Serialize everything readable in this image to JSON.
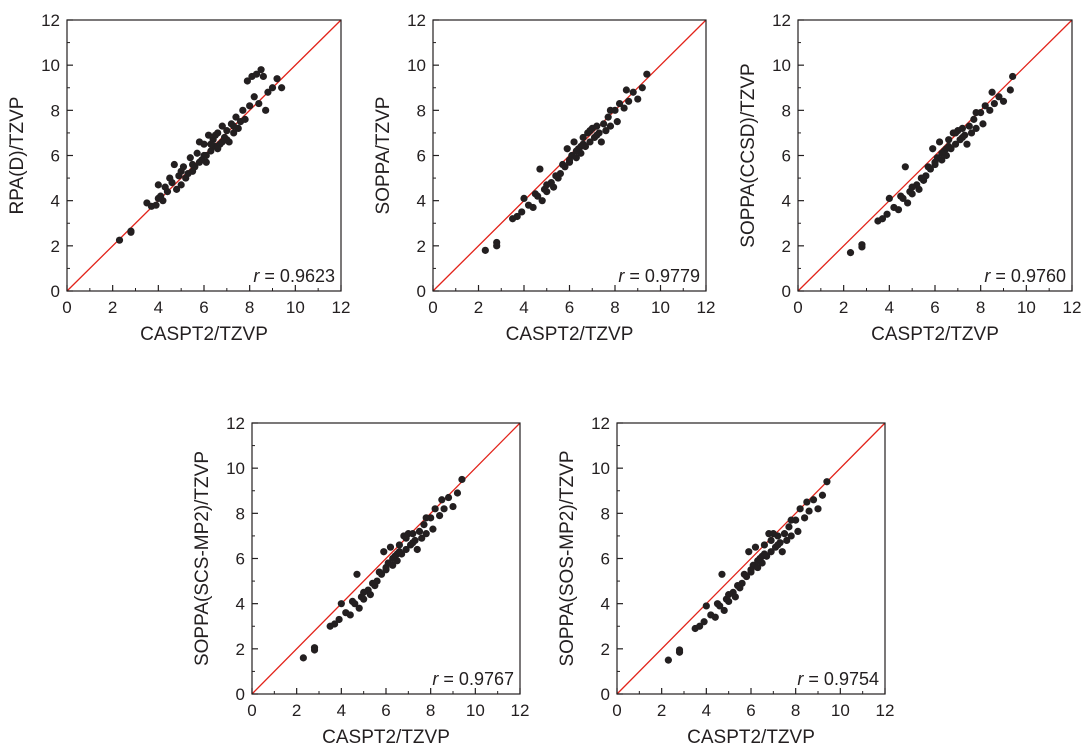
{
  "chart_data": [
    {
      "type": "scatter",
      "xlabel": "CASPT2/TZVP",
      "ylabel": "RPA(D)/TZVP",
      "xlim": [
        0,
        12
      ],
      "ylim": [
        0,
        12
      ],
      "xticks": [
        "0",
        "2",
        "4",
        "6",
        "8",
        "10",
        "12"
      ],
      "yticks": [
        "0",
        "2",
        "4",
        "6",
        "8",
        "10",
        "12"
      ],
      "diagonal_line_color": "#e2231a",
      "point_color": "#231f20",
      "r_var": "r",
      "r_value": "= 0.9623",
      "points": [
        [
          2.3,
          2.25
        ],
        [
          2.8,
          2.6
        ],
        [
          2.8,
          2.65
        ],
        [
          3.5,
          3.9
        ],
        [
          3.7,
          3.75
        ],
        [
          3.9,
          3.8
        ],
        [
          4.0,
          4.7
        ],
        [
          4.1,
          4.2
        ],
        [
          4.2,
          4.0
        ],
        [
          4.3,
          4.6
        ],
        [
          4.4,
          4.4
        ],
        [
          4.5,
          5.0
        ],
        [
          4.6,
          4.8
        ],
        [
          4.7,
          5.6
        ],
        [
          4.8,
          4.5
        ],
        [
          4.9,
          5.1
        ],
        [
          5.0,
          4.7
        ],
        [
          5.1,
          5.5
        ],
        [
          5.2,
          5.0
        ],
        [
          5.3,
          5.2
        ],
        [
          5.4,
          5.9
        ],
        [
          5.5,
          5.3
        ],
        [
          5.6,
          5.5
        ],
        [
          5.7,
          6.1
        ],
        [
          5.8,
          6.6
        ],
        [
          5.9,
          5.8
        ],
        [
          6.0,
          6.0
        ],
        [
          6.0,
          6.5
        ],
        [
          6.1,
          5.7
        ],
        [
          6.2,
          6.9
        ],
        [
          6.3,
          6.2
        ],
        [
          6.4,
          6.7
        ],
        [
          6.5,
          6.4
        ],
        [
          6.6,
          7.0
        ],
        [
          6.7,
          6.5
        ],
        [
          6.8,
          7.3
        ],
        [
          6.9,
          6.8
        ],
        [
          7.0,
          7.1
        ],
        [
          7.1,
          6.6
        ],
        [
          7.2,
          7.4
        ],
        [
          7.3,
          7.0
        ],
        [
          7.4,
          7.7
        ],
        [
          7.5,
          7.2
        ],
        [
          7.6,
          7.5
        ],
        [
          7.7,
          8.0
        ],
        [
          7.8,
          7.6
        ],
        [
          7.9,
          9.3
        ],
        [
          8.0,
          8.2
        ],
        [
          8.1,
          9.5
        ],
        [
          8.2,
          8.6
        ],
        [
          8.3,
          9.6
        ],
        [
          8.4,
          8.3
        ],
        [
          8.5,
          9.8
        ],
        [
          8.6,
          9.5
        ],
        [
          8.7,
          8.0
        ],
        [
          8.8,
          8.8
        ],
        [
          9.0,
          9.0
        ],
        [
          9.2,
          9.4
        ],
        [
          9.4,
          9.0
        ],
        [
          5.5,
          5.6
        ],
        [
          6.1,
          6.0
        ],
        [
          6.5,
          6.9
        ],
        [
          7.0,
          6.7
        ],
        [
          7.3,
          7.3
        ],
        [
          5.8,
          5.7
        ],
        [
          6.8,
          6.6
        ],
        [
          6.3,
          6.5
        ],
        [
          4.0,
          4.1
        ],
        [
          5.0,
          5.3
        ],
        [
          6.6,
          6.3
        ]
      ]
    },
    {
      "type": "scatter",
      "xlabel": "CASPT2/TZVP",
      "ylabel": "SOPPA/TZVP",
      "xlim": [
        0,
        12
      ],
      "ylim": [
        0,
        12
      ],
      "xticks": [
        "0",
        "2",
        "4",
        "6",
        "8",
        "10",
        "12"
      ],
      "yticks": [
        "0",
        "2",
        "4",
        "6",
        "8",
        "10",
        "12"
      ],
      "diagonal_line_color": "#e2231a",
      "point_color": "#231f20",
      "r_var": "r",
      "r_value": "= 0.9779",
      "points": [
        [
          2.3,
          1.8
        ],
        [
          2.8,
          2.0
        ],
        [
          2.8,
          2.15
        ],
        [
          3.5,
          3.2
        ],
        [
          3.7,
          3.3
        ],
        [
          3.9,
          3.5
        ],
        [
          4.0,
          4.1
        ],
        [
          4.2,
          3.8
        ],
        [
          4.4,
          3.7
        ],
        [
          4.5,
          4.3
        ],
        [
          4.7,
          5.4
        ],
        [
          4.8,
          4.0
        ],
        [
          4.9,
          4.5
        ],
        [
          5.0,
          4.4
        ],
        [
          5.2,
          4.8
        ],
        [
          5.3,
          4.6
        ],
        [
          5.5,
          5.0
        ],
        [
          5.6,
          5.2
        ],
        [
          5.8,
          5.5
        ],
        [
          5.9,
          6.3
        ],
        [
          6.0,
          5.7
        ],
        [
          6.1,
          6.0
        ],
        [
          6.2,
          6.6
        ],
        [
          6.3,
          5.9
        ],
        [
          6.4,
          6.3
        ],
        [
          6.5,
          6.1
        ],
        [
          6.6,
          6.8
        ],
        [
          6.7,
          6.4
        ],
        [
          6.8,
          7.0
        ],
        [
          6.9,
          6.6
        ],
        [
          7.0,
          7.2
        ],
        [
          7.1,
          6.8
        ],
        [
          7.2,
          7.3
        ],
        [
          7.3,
          7.0
        ],
        [
          7.4,
          6.6
        ],
        [
          7.5,
          7.4
        ],
        [
          7.6,
          7.1
        ],
        [
          7.7,
          7.7
        ],
        [
          7.8,
          7.3
        ],
        [
          8.0,
          8.0
        ],
        [
          8.1,
          7.5
        ],
        [
          8.2,
          8.3
        ],
        [
          8.4,
          8.1
        ],
        [
          8.5,
          8.9
        ],
        [
          8.6,
          8.4
        ],
        [
          8.8,
          8.8
        ],
        [
          9.0,
          8.5
        ],
        [
          9.2,
          9.0
        ],
        [
          9.4,
          9.6
        ],
        [
          5.4,
          5.1
        ],
        [
          6.0,
          5.8
        ],
        [
          6.5,
          6.4
        ],
        [
          6.9,
          7.1
        ],
        [
          7.2,
          6.9
        ],
        [
          5.7,
          5.6
        ],
        [
          6.3,
          6.2
        ],
        [
          5.0,
          4.7
        ],
        [
          4.6,
          4.2
        ],
        [
          7.8,
          8.0
        ],
        [
          6.6,
          6.5
        ]
      ]
    },
    {
      "type": "scatter",
      "xlabel": "CASPT2/TZVP",
      "ylabel": "SOPPA(CCSD)/TZVP",
      "xlim": [
        0,
        12
      ],
      "ylim": [
        0,
        12
      ],
      "xticks": [
        "0",
        "2",
        "4",
        "6",
        "8",
        "10",
        "12"
      ],
      "yticks": [
        "0",
        "2",
        "4",
        "6",
        "8",
        "10",
        "12"
      ],
      "diagonal_line_color": "#e2231a",
      "point_color": "#231f20",
      "r_var": "r",
      "r_value": "= 0.9760",
      "points": [
        [
          2.3,
          1.7
        ],
        [
          2.8,
          1.95
        ],
        [
          2.8,
          2.05
        ],
        [
          3.5,
          3.1
        ],
        [
          3.7,
          3.2
        ],
        [
          3.9,
          3.4
        ],
        [
          4.0,
          4.1
        ],
        [
          4.2,
          3.7
        ],
        [
          4.4,
          3.6
        ],
        [
          4.5,
          4.2
        ],
        [
          4.7,
          5.5
        ],
        [
          4.8,
          3.9
        ],
        [
          4.9,
          4.4
        ],
        [
          5.0,
          4.3
        ],
        [
          5.2,
          4.7
        ],
        [
          5.3,
          4.5
        ],
        [
          5.5,
          4.9
        ],
        [
          5.6,
          5.1
        ],
        [
          5.8,
          5.4
        ],
        [
          5.9,
          6.3
        ],
        [
          6.0,
          5.6
        ],
        [
          6.1,
          5.9
        ],
        [
          6.2,
          6.6
        ],
        [
          6.3,
          5.8
        ],
        [
          6.4,
          6.2
        ],
        [
          6.5,
          6.0
        ],
        [
          6.6,
          6.7
        ],
        [
          6.7,
          6.3
        ],
        [
          6.8,
          7.0
        ],
        [
          6.9,
          6.5
        ],
        [
          7.0,
          7.1
        ],
        [
          7.1,
          6.7
        ],
        [
          7.2,
          7.2
        ],
        [
          7.3,
          6.9
        ],
        [
          7.4,
          6.5
        ],
        [
          7.5,
          7.3
        ],
        [
          7.6,
          7.0
        ],
        [
          7.7,
          7.6
        ],
        [
          7.8,
          7.2
        ],
        [
          8.0,
          7.9
        ],
        [
          8.1,
          7.4
        ],
        [
          8.2,
          8.2
        ],
        [
          8.4,
          8.0
        ],
        [
          8.5,
          8.8
        ],
        [
          8.6,
          8.3
        ],
        [
          8.8,
          8.6
        ],
        [
          9.0,
          8.4
        ],
        [
          9.3,
          8.9
        ],
        [
          9.4,
          9.5
        ],
        [
          5.4,
          5.0
        ],
        [
          6.0,
          5.7
        ],
        [
          6.5,
          6.3
        ],
        [
          6.9,
          7.0
        ],
        [
          7.2,
          6.8
        ],
        [
          5.7,
          5.5
        ],
        [
          6.3,
          6.1
        ],
        [
          5.0,
          4.6
        ],
        [
          4.6,
          4.1
        ],
        [
          7.8,
          7.9
        ],
        [
          6.6,
          6.4
        ]
      ]
    },
    {
      "type": "scatter",
      "xlabel": "CASPT2/TZVP",
      "ylabel": "SOPPA(SCS-MP2)/TZVP",
      "xlim": [
        0,
        12
      ],
      "ylim": [
        0,
        12
      ],
      "xticks": [
        "0",
        "2",
        "4",
        "6",
        "8",
        "10",
        "12"
      ],
      "yticks": [
        "0",
        "2",
        "4",
        "6",
        "8",
        "10",
        "12"
      ],
      "diagonal_line_color": "#e2231a",
      "point_color": "#231f20",
      "r_var": "r",
      "r_value": "= 0.9767",
      "points": [
        [
          2.3,
          1.6
        ],
        [
          2.8,
          1.95
        ],
        [
          2.8,
          2.05
        ],
        [
          3.5,
          3.0
        ],
        [
          3.7,
          3.1
        ],
        [
          3.9,
          3.3
        ],
        [
          4.0,
          4.0
        ],
        [
          4.2,
          3.6
        ],
        [
          4.4,
          3.5
        ],
        [
          4.5,
          4.1
        ],
        [
          4.7,
          5.3
        ],
        [
          4.8,
          3.8
        ],
        [
          4.9,
          4.3
        ],
        [
          5.0,
          4.2
        ],
        [
          5.2,
          4.6
        ],
        [
          5.3,
          4.4
        ],
        [
          5.5,
          4.8
        ],
        [
          5.6,
          5.0
        ],
        [
          5.8,
          5.3
        ],
        [
          5.9,
          6.3
        ],
        [
          6.0,
          5.5
        ],
        [
          6.1,
          5.8
        ],
        [
          6.2,
          6.5
        ],
        [
          6.3,
          5.7
        ],
        [
          6.4,
          6.1
        ],
        [
          6.5,
          5.9
        ],
        [
          6.6,
          6.6
        ],
        [
          6.7,
          6.2
        ],
        [
          6.8,
          7.0
        ],
        [
          6.9,
          6.4
        ],
        [
          7.0,
          7.1
        ],
        [
          7.1,
          6.6
        ],
        [
          7.2,
          7.1
        ],
        [
          7.3,
          6.8
        ],
        [
          7.4,
          6.4
        ],
        [
          7.5,
          7.2
        ],
        [
          7.6,
          6.9
        ],
        [
          7.7,
          7.5
        ],
        [
          7.8,
          7.1
        ],
        [
          8.0,
          7.8
        ],
        [
          8.1,
          7.3
        ],
        [
          8.2,
          8.2
        ],
        [
          8.4,
          7.9
        ],
        [
          8.5,
          8.6
        ],
        [
          8.6,
          8.2
        ],
        [
          8.8,
          8.7
        ],
        [
          9.0,
          8.3
        ],
        [
          9.2,
          8.9
        ],
        [
          9.4,
          9.5
        ],
        [
          5.4,
          4.9
        ],
        [
          6.0,
          5.6
        ],
        [
          6.5,
          6.2
        ],
        [
          6.9,
          6.9
        ],
        [
          7.2,
          6.7
        ],
        [
          5.7,
          5.4
        ],
        [
          6.3,
          6.0
        ],
        [
          5.0,
          4.5
        ],
        [
          4.6,
          4.0
        ],
        [
          7.8,
          7.8
        ],
        [
          6.6,
          6.3
        ]
      ]
    },
    {
      "type": "scatter",
      "xlabel": "CASPT2/TZVP",
      "ylabel": "SOPPA(SOS-MP2)/TZVP",
      "xlim": [
        0,
        12
      ],
      "ylim": [
        0,
        12
      ],
      "xticks": [
        "0",
        "2",
        "4",
        "6",
        "8",
        "10",
        "12"
      ],
      "yticks": [
        "0",
        "2",
        "4",
        "6",
        "8",
        "10",
        "12"
      ],
      "diagonal_line_color": "#e2231a",
      "point_color": "#231f20",
      "r_var": "r",
      "r_value": "= 0.9754",
      "points": [
        [
          2.3,
          1.5
        ],
        [
          2.8,
          1.85
        ],
        [
          2.8,
          1.95
        ],
        [
          3.5,
          2.9
        ],
        [
          3.7,
          3.0
        ],
        [
          3.9,
          3.2
        ],
        [
          4.0,
          3.9
        ],
        [
          4.2,
          3.5
        ],
        [
          4.4,
          3.4
        ],
        [
          4.5,
          4.0
        ],
        [
          4.7,
          5.3
        ],
        [
          4.8,
          3.7
        ],
        [
          4.9,
          4.2
        ],
        [
          5.0,
          4.1
        ],
        [
          5.2,
          4.5
        ],
        [
          5.3,
          4.3
        ],
        [
          5.5,
          4.7
        ],
        [
          5.6,
          4.9
        ],
        [
          5.8,
          5.2
        ],
        [
          5.9,
          6.3
        ],
        [
          6.0,
          5.4
        ],
        [
          6.1,
          5.7
        ],
        [
          6.2,
          6.5
        ],
        [
          6.3,
          5.6
        ],
        [
          6.4,
          6.0
        ],
        [
          6.5,
          5.8
        ],
        [
          6.6,
          6.6
        ],
        [
          6.7,
          6.1
        ],
        [
          6.8,
          7.1
        ],
        [
          6.9,
          6.3
        ],
        [
          7.0,
          7.1
        ],
        [
          7.1,
          6.5
        ],
        [
          7.2,
          7.0
        ],
        [
          7.3,
          6.7
        ],
        [
          7.4,
          6.3
        ],
        [
          7.5,
          7.1
        ],
        [
          7.6,
          6.8
        ],
        [
          7.7,
          7.4
        ],
        [
          7.8,
          7.0
        ],
        [
          8.0,
          7.7
        ],
        [
          8.1,
          7.2
        ],
        [
          8.2,
          8.2
        ],
        [
          8.4,
          7.8
        ],
        [
          8.5,
          8.5
        ],
        [
          8.6,
          8.1
        ],
        [
          8.8,
          8.6
        ],
        [
          9.0,
          8.2
        ],
        [
          9.2,
          8.8
        ],
        [
          9.4,
          9.4
        ],
        [
          5.4,
          4.8
        ],
        [
          6.0,
          5.5
        ],
        [
          6.5,
          6.1
        ],
        [
          6.9,
          6.8
        ],
        [
          7.2,
          6.6
        ],
        [
          5.7,
          5.3
        ],
        [
          6.3,
          5.9
        ],
        [
          5.0,
          4.4
        ],
        [
          4.6,
          3.9
        ],
        [
          7.8,
          7.7
        ],
        [
          6.6,
          6.2
        ]
      ]
    }
  ]
}
